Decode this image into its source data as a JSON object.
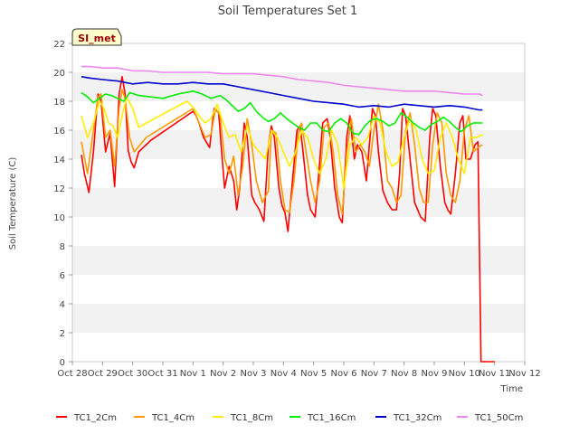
{
  "chart_data": {
    "type": "line",
    "title": "Soil Temperatures Set 1",
    "xlabel": "Time",
    "ylabel": "Soil Temperature (C)",
    "ylim": [
      0,
      22
    ],
    "yticks": [
      0,
      2,
      4,
      6,
      8,
      10,
      12,
      14,
      16,
      18,
      20,
      22
    ],
    "xlim": [
      0,
      15
    ],
    "xtick_labels": [
      "Oct 28",
      "Oct 29",
      "Oct 30",
      "Oct 31",
      "Nov 1",
      "Nov 2",
      "Nov 3",
      "Nov 4",
      "Nov 5",
      "Nov 6",
      "Nov 7",
      "Nov 8",
      "Nov 9",
      "Nov 10",
      "Nov 11",
      "Nov 12"
    ],
    "grid": "horizontal-bands",
    "legend_placement": "bottom",
    "annotation": "SI_met",
    "series": [
      {
        "name": "TC1_2Cm",
        "color": "#ff0000",
        "x": [
          0.3,
          0.4,
          0.55,
          0.7,
          0.85,
          0.95,
          1.1,
          1.25,
          1.4,
          1.55,
          1.65,
          1.75,
          1.85,
          1.95,
          2.05,
          2.2,
          2.35,
          2.45,
          2.6,
          4.0,
          4.1,
          4.2,
          4.35,
          4.55,
          4.7,
          4.85,
          4.95,
          5.05,
          5.2,
          5.35,
          5.45,
          5.55,
          5.7,
          5.8,
          5.95,
          6.05,
          6.2,
          6.35,
          6.5,
          6.6,
          6.7,
          6.85,
          6.95,
          7.05,
          7.15,
          7.3,
          7.45,
          7.55,
          7.65,
          7.8,
          7.9,
          8.05,
          8.15,
          8.3,
          8.45,
          8.55,
          8.7,
          8.85,
          8.95,
          9.1,
          9.2,
          9.35,
          9.45,
          9.6,
          9.75,
          9.85,
          9.95,
          10.05,
          10.15,
          10.3,
          10.45,
          10.6,
          10.75,
          10.85,
          10.95,
          11.05,
          11.2,
          11.35,
          11.45,
          11.55,
          11.7,
          11.85,
          11.95,
          12.05,
          12.2,
          12.35,
          12.45,
          12.55,
          12.7,
          12.85,
          12.95,
          13.05,
          13.2,
          13.35,
          13.45,
          13.55,
          13.7,
          13.8,
          13.9,
          14.0
        ],
        "y": [
          14.3,
          13.0,
          11.7,
          14.5,
          18.5,
          18.0,
          14.5,
          15.8,
          12.1,
          18.5,
          19.7,
          18.5,
          14.6,
          13.8,
          13.4,
          14.5,
          14.8,
          15.0,
          15.3,
          17.3,
          17.0,
          16.5,
          15.5,
          14.8,
          17.5,
          17.2,
          14.5,
          12.0,
          13.5,
          12.5,
          10.5,
          12.0,
          16.5,
          15.5,
          11.5,
          11.0,
          10.5,
          9.7,
          15.0,
          16.3,
          15.5,
          12.0,
          10.8,
          10.3,
          9.0,
          12.5,
          16.0,
          16.3,
          14.5,
          11.5,
          10.5,
          10.0,
          12.5,
          16.5,
          16.8,
          15.5,
          12.0,
          10.0,
          9.6,
          15.5,
          17.0,
          14.0,
          15.0,
          14.5,
          12.5,
          15.0,
          17.5,
          17.0,
          14.5,
          11.8,
          11.0,
          10.5,
          10.5,
          13.0,
          17.5,
          17.0,
          14.0,
          11.0,
          10.5,
          10.0,
          9.7,
          15.5,
          17.5,
          17.0,
          13.5,
          11.0,
          10.5,
          10.2,
          13.0,
          16.5,
          17.0,
          14.0,
          14.0,
          15.0,
          15.2,
          0,
          0,
          0,
          0,
          0
        ]
      },
      {
        "name": "TC1_4Cm",
        "color": "#ff9900",
        "x": [
          0.3,
          0.5,
          0.7,
          0.85,
          0.95,
          1.1,
          1.25,
          1.4,
          1.55,
          1.65,
          1.75,
          1.9,
          2.05,
          2.25,
          2.45,
          4.0,
          4.2,
          4.4,
          4.6,
          4.75,
          4.9,
          5.05,
          5.2,
          5.35,
          5.5,
          5.65,
          5.8,
          5.95,
          6.1,
          6.3,
          6.5,
          6.6,
          6.75,
          6.9,
          7.05,
          7.2,
          7.35,
          7.5,
          7.6,
          7.75,
          7.9,
          8.05,
          8.2,
          8.35,
          8.5,
          8.65,
          8.8,
          8.95,
          9.1,
          9.25,
          9.4,
          9.55,
          9.7,
          9.85,
          10.0,
          10.15,
          10.3,
          10.45,
          10.6,
          10.75,
          10.9,
          11.05,
          11.2,
          11.35,
          11.5,
          11.65,
          11.8,
          11.95,
          12.1,
          12.25,
          12.4,
          12.55,
          12.7,
          12.85,
          13.0,
          13.15,
          13.3,
          13.45,
          13.6
        ],
        "y": [
          15.2,
          13.0,
          16.0,
          18.3,
          18.5,
          15.5,
          16.0,
          13.5,
          17.5,
          18.8,
          18.2,
          15.5,
          14.5,
          15.0,
          15.5,
          17.5,
          16.5,
          15.5,
          15.7,
          17.5,
          17.0,
          14.0,
          13.0,
          14.2,
          11.5,
          13.5,
          16.8,
          15.0,
          12.5,
          11.0,
          11.8,
          16.0,
          15.8,
          12.5,
          10.5,
          10.3,
          12.5,
          16.0,
          16.5,
          14.5,
          12.5,
          11.0,
          12.5,
          16.2,
          16.5,
          14.5,
          11.5,
          10.2,
          14.5,
          16.8,
          14.5,
          15.0,
          14.5,
          13.5,
          16.0,
          17.8,
          16.0,
          12.5,
          12.0,
          11.0,
          11.5,
          16.0,
          17.2,
          15.0,
          12.0,
          11.0,
          11.0,
          15.0,
          17.2,
          16.5,
          13.0,
          11.5,
          11.0,
          12.5,
          16.0,
          17.0,
          14.5,
          14.8,
          15.0
        ]
      },
      {
        "name": "TC1_8Cm",
        "color": "#ffee00",
        "x": [
          0.3,
          0.5,
          0.7,
          0.9,
          1.05,
          1.2,
          1.35,
          1.5,
          1.65,
          1.8,
          2.0,
          2.2,
          2.45,
          3.8,
          4.0,
          4.2,
          4.4,
          4.6,
          4.8,
          5.0,
          5.2,
          5.4,
          5.6,
          5.8,
          6.0,
          6.2,
          6.4,
          6.6,
          6.8,
          7.0,
          7.2,
          7.4,
          7.6,
          7.8,
          8.0,
          8.2,
          8.4,
          8.6,
          8.8,
          9.0,
          9.2,
          9.4,
          9.6,
          9.8,
          10.0,
          10.2,
          10.4,
          10.6,
          10.8,
          11.0,
          11.2,
          11.4,
          11.6,
          11.8,
          12.0,
          12.2,
          12.4,
          12.6,
          12.8,
          13.0,
          13.2,
          13.4,
          13.6
        ],
        "y": [
          17.0,
          15.5,
          16.5,
          18.0,
          17.5,
          16.5,
          16.3,
          15.5,
          17.0,
          18.3,
          17.5,
          16.2,
          16.5,
          18.0,
          17.6,
          17.0,
          16.5,
          16.8,
          17.8,
          16.5,
          15.5,
          15.7,
          14.5,
          16.3,
          15.0,
          14.5,
          14.0,
          16.0,
          15.5,
          14.5,
          13.5,
          14.5,
          16.0,
          15.5,
          14.0,
          13.0,
          14.0,
          16.0,
          15.0,
          12.0,
          15.0,
          15.5,
          15.0,
          15.5,
          17.0,
          16.5,
          14.5,
          13.5,
          13.8,
          15.5,
          16.8,
          16.0,
          14.0,
          13.0,
          13.2,
          15.5,
          16.5,
          15.5,
          14.0,
          13.0,
          15.5,
          15.5,
          15.7
        ]
      },
      {
        "name": "TC1_16Cm",
        "color": "#00ee00",
        "x": [
          0.3,
          0.5,
          0.7,
          0.9,
          1.1,
          1.3,
          1.5,
          1.7,
          1.9,
          2.2,
          2.6,
          3.0,
          3.5,
          4.0,
          4.3,
          4.6,
          4.9,
          5.1,
          5.3,
          5.5,
          5.7,
          5.9,
          6.1,
          6.3,
          6.5,
          6.7,
          6.9,
          7.1,
          7.3,
          7.5,
          7.7,
          7.9,
          8.1,
          8.3,
          8.5,
          8.7,
          8.9,
          9.1,
          9.3,
          9.5,
          9.7,
          9.9,
          10.1,
          10.3,
          10.5,
          10.7,
          10.9,
          11.1,
          11.3,
          11.5,
          11.7,
          11.9,
          12.1,
          12.3,
          12.5,
          12.7,
          12.9,
          13.1,
          13.3,
          13.5,
          13.6
        ],
        "y": [
          18.6,
          18.3,
          17.9,
          18.2,
          18.5,
          18.4,
          18.2,
          18.0,
          18.6,
          18.4,
          18.3,
          18.2,
          18.5,
          18.7,
          18.5,
          18.2,
          18.4,
          18.1,
          17.7,
          17.3,
          17.5,
          17.9,
          17.3,
          16.9,
          16.6,
          16.8,
          17.2,
          16.8,
          16.5,
          16.2,
          16.0,
          16.5,
          16.5,
          16.0,
          15.9,
          16.5,
          16.8,
          16.5,
          15.8,
          15.7,
          16.3,
          16.7,
          16.8,
          16.6,
          16.3,
          16.5,
          17.2,
          16.9,
          16.5,
          16.2,
          16.0,
          16.4,
          16.6,
          16.9,
          16.6,
          16.2,
          15.9,
          16.3,
          16.5,
          16.5,
          16.5
        ]
      },
      {
        "name": "TC1_32Cm",
        "color": "#0000cc",
        "x": [
          0.3,
          0.6,
          1.0,
          1.5,
          2.0,
          2.5,
          3.0,
          3.5,
          4.0,
          4.5,
          5.0,
          5.5,
          6.0,
          6.5,
          7.0,
          7.5,
          8.0,
          8.5,
          9.0,
          9.5,
          10.0,
          10.5,
          11.0,
          11.5,
          12.0,
          12.5,
          13.0,
          13.5,
          13.6
        ],
        "y": [
          19.7,
          19.6,
          19.5,
          19.4,
          19.2,
          19.3,
          19.2,
          19.2,
          19.3,
          19.2,
          19.2,
          19.0,
          18.8,
          18.6,
          18.4,
          18.2,
          18.0,
          17.9,
          17.8,
          17.6,
          17.7,
          17.6,
          17.8,
          17.7,
          17.6,
          17.7,
          17.6,
          17.4,
          17.4
        ]
      },
      {
        "name": "TC1_50Cm",
        "color": "#ee88ee",
        "x": [
          0.3,
          0.6,
          1.0,
          1.5,
          2.0,
          2.5,
          3.0,
          3.5,
          4.0,
          4.5,
          5.0,
          5.5,
          6.0,
          6.5,
          7.0,
          7.5,
          8.0,
          8.5,
          9.0,
          9.5,
          10.0,
          10.5,
          11.0,
          11.5,
          12.0,
          12.5,
          13.0,
          13.5,
          13.6
        ],
        "y": [
          20.4,
          20.4,
          20.3,
          20.3,
          20.1,
          20.1,
          20.0,
          20.0,
          20.0,
          20.0,
          19.9,
          19.9,
          19.9,
          19.8,
          19.7,
          19.5,
          19.4,
          19.3,
          19.1,
          19.0,
          18.9,
          18.8,
          18.7,
          18.7,
          18.7,
          18.6,
          18.5,
          18.5,
          18.4
        ]
      }
    ]
  }
}
